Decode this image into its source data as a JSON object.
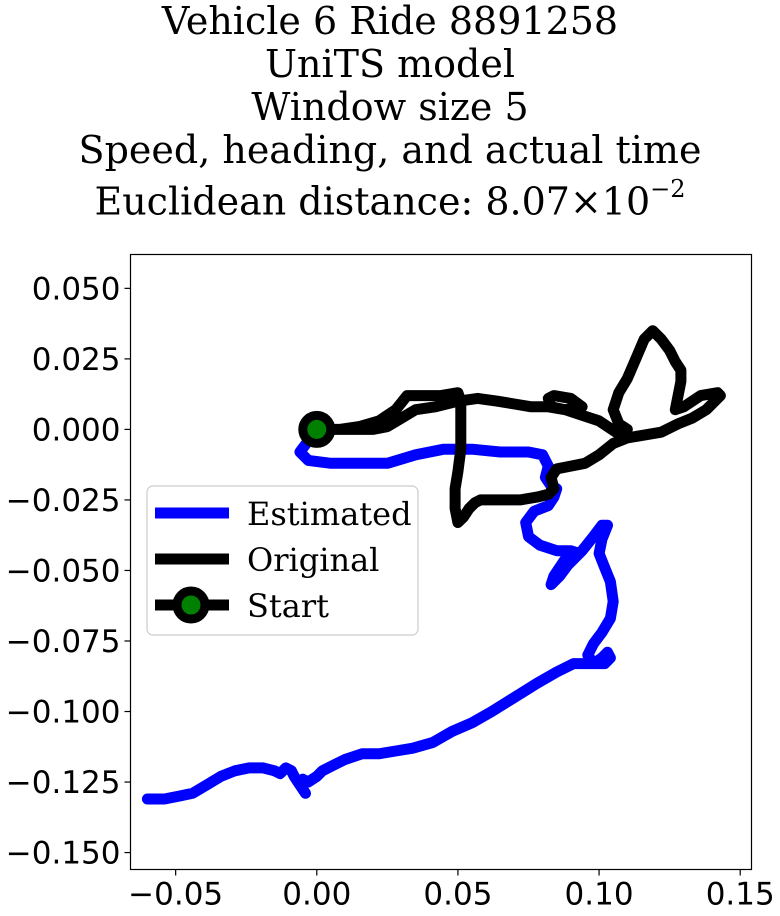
{
  "title": {
    "line1": "Vehicle 6 Ride 8891258",
    "line2": "UniTS model",
    "line3": "Window size 5",
    "line4": "Speed, heading, and actual time",
    "line5_prefix": "Euclidean distance: 8.07",
    "line5_times": "×",
    "line5_base": "10",
    "line5_exp": "−2"
  },
  "colors": {
    "estimated": "#0000ff",
    "original": "#000000",
    "start_marker_face": "#008000",
    "start_marker_edge": "#000000"
  },
  "chart_data": {
    "type": "line",
    "title": "Vehicle 6 Ride 8891258 UniTS model Window size 5 Speed, heading, and actual time Euclidean distance: 8.07×10^-2",
    "xlabel": "",
    "ylabel": "",
    "xlim": [
      -0.066,
      0.154
    ],
    "ylim": [
      -0.156,
      0.062
    ],
    "xticks": [
      -0.05,
      0.0,
      0.05,
      0.1,
      0.15
    ],
    "xtick_labels": [
      "−0.05",
      "0.00",
      "0.05",
      "0.10",
      "0.15"
    ],
    "yticks": [
      0.05,
      0.025,
      0.0,
      -0.025,
      -0.05,
      -0.075,
      -0.1,
      -0.125,
      -0.15
    ],
    "ytick_labels": [
      "0.050",
      "0.025",
      "0.000",
      "−0.025",
      "−0.050",
      "−0.075",
      "−0.100",
      "−0.125",
      "−0.150"
    ],
    "grid": false,
    "legend_position": "center-left",
    "series": [
      {
        "name": "Estimated",
        "color": "#0000ff",
        "points": [
          [
            0.0,
            0.0
          ],
          [
            -0.006,
            -0.008
          ],
          [
            -0.003,
            -0.011
          ],
          [
            0.005,
            -0.012
          ],
          [
            0.015,
            -0.012
          ],
          [
            0.025,
            -0.012
          ],
          [
            0.035,
            -0.009
          ],
          [
            0.045,
            -0.007
          ],
          [
            0.055,
            -0.007
          ],
          [
            0.065,
            -0.008
          ],
          [
            0.075,
            -0.008
          ],
          [
            0.08,
            -0.009
          ],
          [
            0.082,
            -0.013
          ],
          [
            0.081,
            -0.017
          ],
          [
            0.083,
            -0.02
          ],
          [
            0.085,
            -0.021
          ],
          [
            0.084,
            -0.024
          ],
          [
            0.082,
            -0.027
          ],
          [
            0.077,
            -0.029
          ],
          [
            0.074,
            -0.033
          ],
          [
            0.075,
            -0.038
          ],
          [
            0.079,
            -0.041
          ],
          [
            0.085,
            -0.043
          ],
          [
            0.09,
            -0.043
          ],
          [
            0.093,
            -0.044
          ],
          [
            0.088,
            -0.046
          ],
          [
            0.086,
            -0.049
          ],
          [
            0.084,
            -0.052
          ],
          [
            0.083,
            -0.055
          ],
          [
            0.086,
            -0.052
          ],
          [
            0.089,
            -0.048
          ],
          [
            0.094,
            -0.043
          ],
          [
            0.098,
            -0.038
          ],
          [
            0.101,
            -0.034
          ],
          [
            0.103,
            -0.034
          ],
          [
            0.101,
            -0.039
          ],
          [
            0.1,
            -0.044
          ],
          [
            0.102,
            -0.049
          ],
          [
            0.104,
            -0.054
          ],
          [
            0.105,
            -0.061
          ],
          [
            0.104,
            -0.067
          ],
          [
            0.101,
            -0.072
          ],
          [
            0.098,
            -0.076
          ],
          [
            0.096,
            -0.08
          ],
          [
            0.098,
            -0.083
          ],
          [
            0.101,
            -0.081
          ],
          [
            0.103,
            -0.079
          ],
          [
            0.104,
            -0.081
          ],
          [
            0.102,
            -0.083
          ],
          [
            0.097,
            -0.083
          ],
          [
            0.091,
            -0.083
          ],
          [
            0.085,
            -0.086
          ],
          [
            0.078,
            -0.09
          ],
          [
            0.07,
            -0.095
          ],
          [
            0.062,
            -0.1
          ],
          [
            0.055,
            -0.104
          ],
          [
            0.048,
            -0.107
          ],
          [
            0.041,
            -0.111
          ],
          [
            0.034,
            -0.113
          ],
          [
            0.028,
            -0.114
          ],
          [
            0.022,
            -0.115
          ],
          [
            0.016,
            -0.115
          ],
          [
            0.01,
            -0.117
          ],
          [
            0.006,
            -0.119
          ],
          [
            0.002,
            -0.121
          ],
          [
            0.0,
            -0.123
          ],
          [
            -0.003,
            -0.125
          ],
          [
            -0.005,
            -0.124
          ],
          [
            -0.006,
            -0.126
          ],
          [
            -0.004,
            -0.129
          ],
          [
            -0.006,
            -0.126
          ],
          [
            -0.008,
            -0.123
          ],
          [
            -0.009,
            -0.121
          ],
          [
            -0.011,
            -0.12
          ],
          [
            -0.013,
            -0.122
          ],
          [
            -0.015,
            -0.121
          ],
          [
            -0.019,
            -0.12
          ],
          [
            -0.024,
            -0.12
          ],
          [
            -0.029,
            -0.121
          ],
          [
            -0.034,
            -0.123
          ],
          [
            -0.039,
            -0.126
          ],
          [
            -0.044,
            -0.129
          ],
          [
            -0.049,
            -0.13
          ],
          [
            -0.054,
            -0.131
          ],
          [
            -0.06,
            -0.131
          ]
        ]
      },
      {
        "name": "Original",
        "color": "#000000",
        "points": [
          [
            0.0,
            0.0
          ],
          [
            0.008,
            0.0
          ],
          [
            0.015,
            0.001
          ],
          [
            0.022,
            0.003
          ],
          [
            0.028,
            0.007
          ],
          [
            0.032,
            0.012
          ],
          [
            0.037,
            0.012
          ],
          [
            0.044,
            0.012
          ],
          [
            0.05,
            0.013
          ],
          [
            0.051,
            0.01
          ],
          [
            0.051,
            0.002
          ],
          [
            0.051,
            -0.007
          ],
          [
            0.05,
            -0.015
          ],
          [
            0.049,
            -0.021
          ],
          [
            0.049,
            -0.028
          ],
          [
            0.05,
            -0.033
          ],
          [
            0.052,
            -0.031
          ],
          [
            0.054,
            -0.028
          ],
          [
            0.056,
            -0.026
          ],
          [
            0.058,
            -0.025
          ],
          [
            0.064,
            -0.025
          ],
          [
            0.072,
            -0.025
          ],
          [
            0.078,
            -0.024
          ],
          [
            0.082,
            -0.023
          ],
          [
            0.084,
            -0.021
          ],
          [
            0.083,
            -0.017
          ],
          [
            0.085,
            -0.014
          ],
          [
            0.09,
            -0.013
          ],
          [
            0.095,
            -0.012
          ],
          [
            0.1,
            -0.009
          ],
          [
            0.105,
            -0.005
          ],
          [
            0.11,
            -0.003
          ],
          [
            0.116,
            -0.002
          ],
          [
            0.122,
            -0.001
          ],
          [
            0.128,
            0.002
          ],
          [
            0.133,
            0.004
          ],
          [
            0.138,
            0.007
          ],
          [
            0.143,
            0.012
          ],
          [
            0.142,
            0.013
          ],
          [
            0.136,
            0.012
          ],
          [
            0.13,
            0.008
          ],
          [
            0.127,
            0.007
          ],
          [
            0.128,
            0.012
          ],
          [
            0.129,
            0.017
          ],
          [
            0.129,
            0.021
          ],
          [
            0.127,
            0.024
          ],
          [
            0.125,
            0.028
          ],
          [
            0.122,
            0.032
          ],
          [
            0.119,
            0.035
          ],
          [
            0.116,
            0.032
          ],
          [
            0.113,
            0.025
          ],
          [
            0.11,
            0.018
          ],
          [
            0.107,
            0.013
          ],
          [
            0.105,
            0.007
          ],
          [
            0.107,
            0.002
          ],
          [
            0.11,
            0.0
          ],
          [
            0.106,
            -0.001
          ],
          [
            0.1,
            0.003
          ],
          [
            0.094,
            0.005
          ],
          [
            0.088,
            0.007
          ],
          [
            0.083,
            0.008
          ],
          [
            0.082,
            0.011
          ],
          [
            0.084,
            0.012
          ],
          [
            0.09,
            0.011
          ],
          [
            0.094,
            0.008
          ],
          [
            0.088,
            0.007
          ],
          [
            0.082,
            0.008
          ],
          [
            0.076,
            0.008
          ],
          [
            0.07,
            0.009
          ],
          [
            0.064,
            0.01
          ],
          [
            0.057,
            0.011
          ],
          [
            0.05,
            0.01
          ],
          [
            0.042,
            0.008
          ],
          [
            0.035,
            0.007
          ],
          [
            0.03,
            0.004
          ],
          [
            0.025,
            0.001
          ],
          [
            0.02,
            0.0
          ],
          [
            0.014,
            0.0
          ],
          [
            0.007,
            0.0
          ],
          [
            0.0,
            0.0
          ]
        ]
      }
    ],
    "start_point": {
      "name": "Start",
      "x": 0.0,
      "y": 0.0
    }
  }
}
